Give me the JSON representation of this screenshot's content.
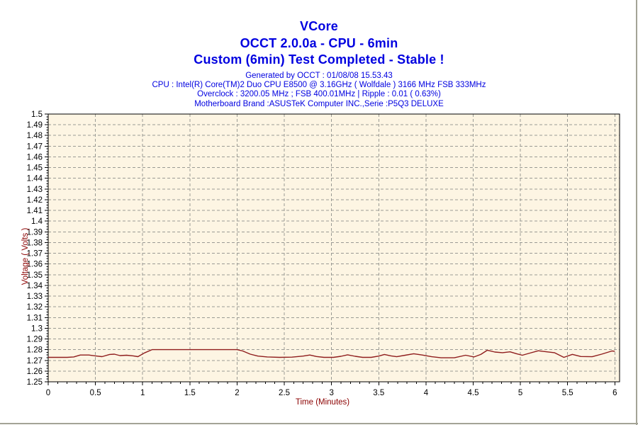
{
  "window": {
    "bg_color": "#ffffff",
    "edge_color": "#a3a396"
  },
  "header": {
    "title_color": "#0000e0",
    "subtitle_color": "#0000e0",
    "title_lines": [
      "VCore",
      "OCCT 2.0.0a - CPU - 6min",
      "Custom (6min) Test Completed - Stable !"
    ],
    "subtitle_lines": [
      "Generated by OCCT : 01/08/08 15.53.43",
      "CPU : Intel(R) Core(TM)2 Duo CPU E8500 @ 3.16GHz ( Wolfdale ) 3166 MHz FSB 333MHz",
      "Overclock : 3200.05 MHz ; FSB 400.01MHz | Ripple : 0.01 ( 0.63%)",
      "Motherboard Brand :ASUSTeK Computer INC.,Serie :P5Q3 DELUXE"
    ]
  },
  "chart_data": {
    "type": "line",
    "title": "VCore",
    "xlabel": "Time (Minutes)",
    "ylabel": "Voltage ( Volts )",
    "xlim": [
      0,
      6.05
    ],
    "ylim": [
      1.25,
      1.5
    ],
    "grid": true,
    "legend": "none",
    "x_tick_labels": [
      "0",
      "0.5",
      "1",
      "1.5",
      "2",
      "2.5",
      "3",
      "3.5",
      "4",
      "4.5",
      "5",
      "5.5",
      "6"
    ],
    "x_minor_step": 0.1,
    "y_tick_labels": [
      "1.5",
      "1.49",
      "1.48",
      "1.47",
      "1.46",
      "1.45",
      "1.44",
      "1.43",
      "1.42",
      "1.41",
      "1.4",
      "1.39",
      "1.38",
      "1.37",
      "1.36",
      "1.35",
      "1.34",
      "1.33",
      "1.32",
      "1.31",
      "1.3",
      "1.29",
      "1.28",
      "1.27",
      "1.26",
      "1.25"
    ],
    "y_minor_step": 0.0025,
    "plot_bg_color": "#fdf5e3",
    "grid_color": "#9a9a94",
    "axis_color": "#000000",
    "axis_label_color": "#8b0000",
    "series": [
      {
        "name": "VCore",
        "color": "#8f1d1d",
        "x": [
          0,
          0.2,
          0.27,
          0.34,
          0.43,
          0.5,
          0.57,
          0.65,
          0.7,
          0.76,
          0.83,
          0.9,
          0.95,
          1.02,
          1.1,
          1.3,
          1.6,
          2.0,
          2.06,
          2.14,
          2.22,
          2.32,
          2.45,
          2.58,
          2.7,
          2.77,
          2.84,
          2.92,
          3.02,
          3.1,
          3.17,
          3.25,
          3.33,
          3.42,
          3.5,
          3.56,
          3.63,
          3.69,
          3.78,
          3.87,
          3.96,
          4.06,
          4.16,
          4.3,
          4.42,
          4.51,
          4.58,
          4.65,
          4.73,
          4.81,
          4.89,
          4.96,
          5.02,
          5.1,
          5.19,
          5.28,
          5.36,
          5.46,
          5.55,
          5.64,
          5.76,
          5.86,
          5.97,
          6.0
        ],
        "y": [
          1.2728,
          1.2728,
          1.2732,
          1.275,
          1.275,
          1.2742,
          1.2735,
          1.2755,
          1.2758,
          1.2745,
          1.2748,
          1.2742,
          1.2735,
          1.277,
          1.28,
          1.28,
          1.28,
          1.28,
          1.2788,
          1.2758,
          1.274,
          1.2732,
          1.2728,
          1.273,
          1.274,
          1.275,
          1.2736,
          1.2728,
          1.2728,
          1.2738,
          1.2752,
          1.2738,
          1.2728,
          1.2728,
          1.274,
          1.2755,
          1.2742,
          1.2734,
          1.2748,
          1.2762,
          1.275,
          1.2734,
          1.2724,
          1.2724,
          1.2748,
          1.2732,
          1.2755,
          1.2795,
          1.2778,
          1.2772,
          1.278,
          1.2762,
          1.2748,
          1.2768,
          1.279,
          1.278,
          1.2772,
          1.2728,
          1.2756,
          1.2736,
          1.2734,
          1.2758,
          1.2788,
          1.2785
        ]
      }
    ]
  }
}
